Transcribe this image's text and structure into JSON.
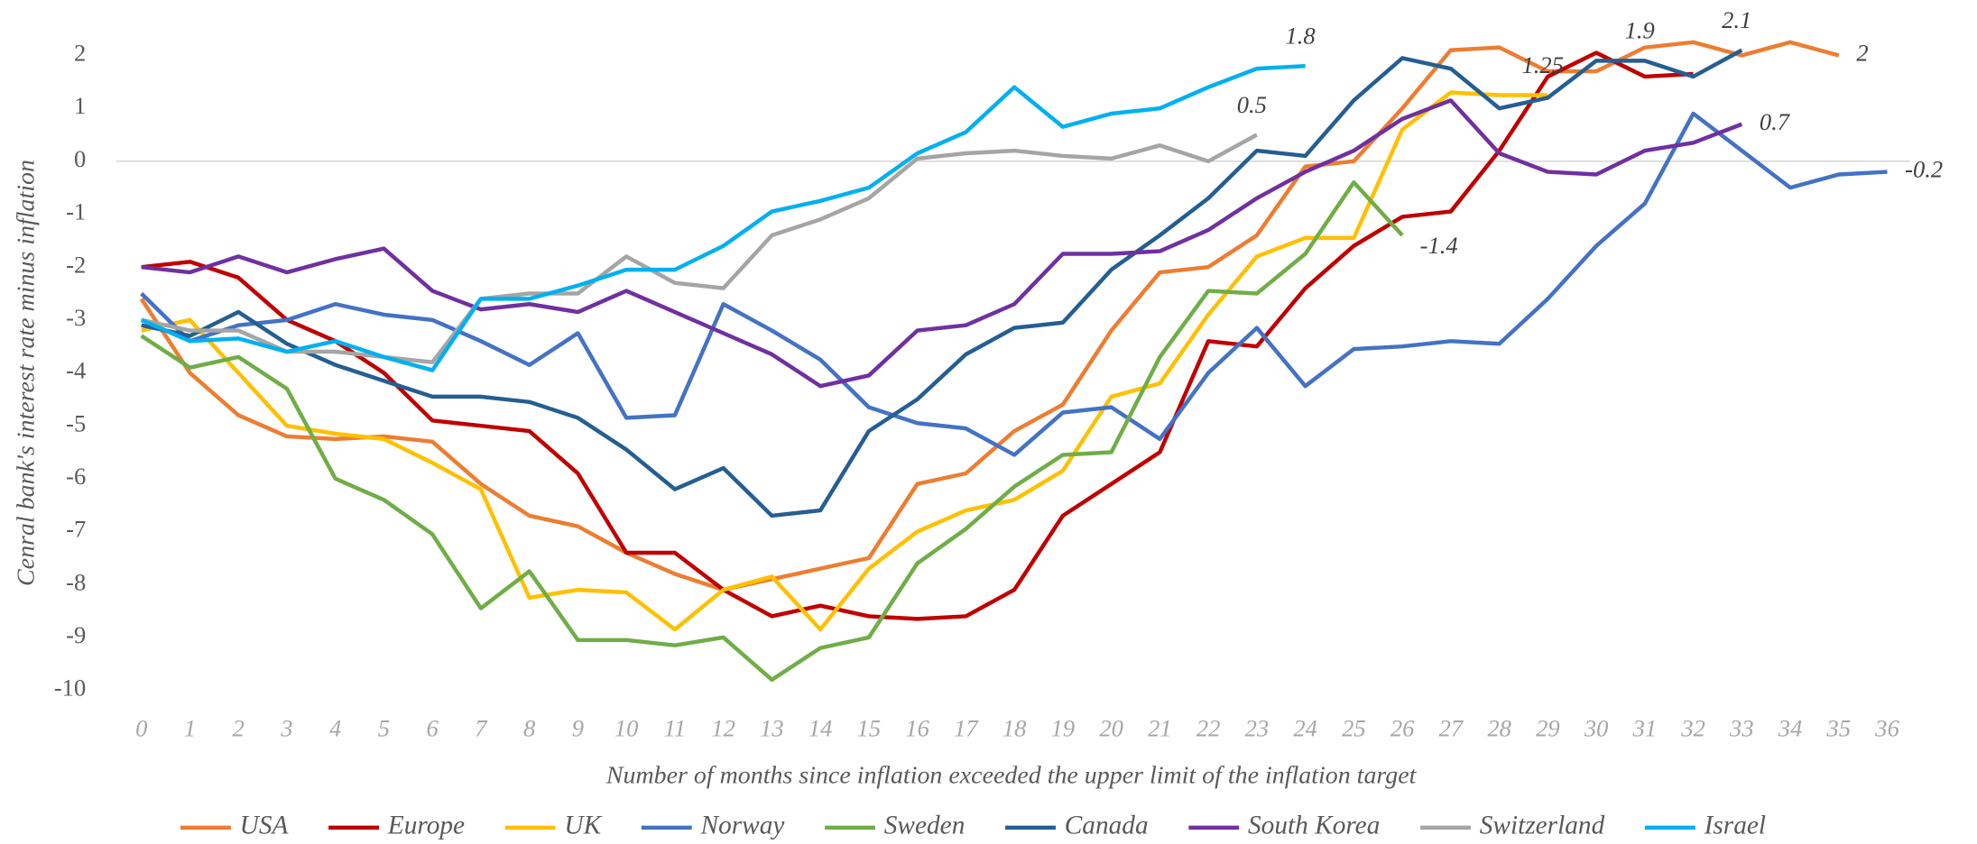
{
  "chart_data": {
    "type": "line",
    "y_label": "Cenral bank's interest rate minus inflation",
    "x_label": "Number of months since inflation exceeded the upper limit of the inflation target",
    "x": [
      0,
      1,
      2,
      3,
      4,
      5,
      6,
      7,
      8,
      9,
      10,
      11,
      12,
      13,
      14,
      15,
      16,
      17,
      18,
      19,
      20,
      21,
      22,
      23,
      24,
      25,
      26,
      27,
      28,
      29,
      30,
      31,
      32,
      33,
      34,
      35,
      36
    ],
    "xlim": [
      0,
      36
    ],
    "xticks": [
      0,
      1,
      2,
      3,
      4,
      5,
      6,
      7,
      8,
      9,
      10,
      11,
      12,
      13,
      14,
      15,
      16,
      17,
      18,
      19,
      20,
      21,
      22,
      23,
      24,
      25,
      26,
      27,
      28,
      29,
      30,
      31,
      32,
      33,
      34,
      35,
      36
    ],
    "ylim": [
      -10,
      2
    ],
    "yticks": [
      -10,
      -9,
      -8,
      -7,
      -6,
      -5,
      -4,
      -3,
      -2,
      -1,
      0,
      1,
      2
    ],
    "legend": "bottom",
    "series": [
      {
        "name": "USA",
        "color": "#ed7d31",
        "values": [
          -2.6,
          -4.0,
          -4.8,
          -5.2,
          -5.25,
          -5.2,
          -5.3,
          -6.1,
          -6.7,
          -6.9,
          -7.4,
          -7.8,
          -8.1,
          -7.9,
          -7.7,
          -7.5,
          -6.1,
          -5.9,
          -5.1,
          -4.6,
          -3.2,
          -2.1,
          -2.0,
          -1.4,
          -0.1,
          0.0,
          1.0,
          2.1,
          2.15,
          1.7,
          1.7,
          2.15,
          2.25,
          2.0,
          2.25,
          2,
          null
        ],
        "value_labels": [
          null,
          null,
          null,
          null,
          null,
          null,
          null,
          null,
          null,
          null,
          null,
          null,
          null,
          null,
          null,
          null,
          null,
          null,
          null,
          null,
          null,
          null,
          null,
          null,
          null,
          null,
          null,
          null,
          null,
          null,
          null,
          null,
          null,
          null,
          null,
          "2",
          null
        ]
      },
      {
        "name": "Europe",
        "color": "#c00000",
        "values": [
          -2.0,
          -1.9,
          -2.2,
          -3.0,
          -3.4,
          -4.0,
          -4.9,
          -5.0,
          -5.1,
          -5.9,
          -7.4,
          -7.4,
          -8.1,
          -8.6,
          -8.4,
          -8.6,
          -8.65,
          -8.6,
          -8.1,
          -6.7,
          -6.1,
          -5.5,
          -3.4,
          -3.5,
          -2.4,
          -1.6,
          -1.05,
          -0.95,
          0.2,
          1.6,
          2.05,
          1.6,
          1.65,
          null,
          null,
          null,
          null
        ]
      },
      {
        "name": "UK",
        "color": "#ffc000",
        "values": [
          -3.2,
          -3.0,
          -4.0,
          -5.0,
          -5.15,
          -5.25,
          -5.7,
          -6.2,
          -8.25,
          -8.1,
          -8.15,
          -8.85,
          -8.1,
          -7.85,
          -8.85,
          -7.7,
          -7.0,
          -6.6,
          -6.4,
          -5.85,
          -4.45,
          -4.2,
          -2.9,
          -1.8,
          -1.45,
          -1.45,
          0.6,
          1.3,
          1.25,
          1.25,
          null,
          null,
          null,
          null,
          null,
          null,
          null
        ],
        "value_labels": [
          null,
          null,
          null,
          null,
          null,
          null,
          null,
          null,
          null,
          null,
          null,
          null,
          null,
          null,
          null,
          null,
          null,
          null,
          null,
          null,
          null,
          null,
          null,
          null,
          null,
          null,
          null,
          null,
          null,
          "1.25",
          null,
          null,
          null,
          null,
          null,
          null,
          null
        ]
      },
      {
        "name": "Norway",
        "color": "#4472c4",
        "values": [
          -2.5,
          -3.4,
          -3.1,
          -3.0,
          -2.7,
          -2.9,
          -3.0,
          -3.4,
          -3.85,
          -3.25,
          -4.85,
          -4.8,
          -2.7,
          -3.2,
          -3.75,
          -4.65,
          -4.95,
          -5.05,
          -5.55,
          -4.75,
          -4.65,
          -5.25,
          -4.0,
          -3.15,
          -4.25,
          -3.55,
          -3.5,
          -3.4,
          -3.45,
          -2.6,
          -1.6,
          -0.8,
          0.9,
          0.2,
          -0.5,
          -0.25,
          -0.2
        ],
        "value_labels": [
          null,
          null,
          null,
          null,
          null,
          null,
          null,
          null,
          null,
          null,
          null,
          null,
          null,
          null,
          null,
          null,
          null,
          null,
          null,
          null,
          null,
          null,
          null,
          null,
          null,
          null,
          null,
          null,
          null,
          null,
          null,
          null,
          null,
          null,
          null,
          null,
          "-0.2"
        ]
      },
      {
        "name": "Sweden",
        "color": "#70ad47",
        "values": [
          -3.3,
          -3.9,
          -3.7,
          -4.3,
          -6.0,
          -6.4,
          -7.05,
          -8.45,
          -7.75,
          -9.05,
          -9.05,
          -9.15,
          -9.0,
          -9.8,
          -9.2,
          -9.0,
          -7.6,
          -6.95,
          -6.15,
          -5.55,
          -5.5,
          -3.7,
          -2.45,
          -2.5,
          -1.75,
          -0.4,
          -1.4,
          null,
          null,
          null,
          null,
          null,
          null,
          null,
          null,
          null,
          null
        ],
        "value_labels": [
          null,
          null,
          null,
          null,
          null,
          null,
          null,
          null,
          null,
          null,
          null,
          null,
          null,
          null,
          null,
          null,
          null,
          null,
          null,
          null,
          null,
          null,
          null,
          null,
          null,
          null,
          "-1.4",
          null,
          null,
          null,
          null,
          null,
          null,
          null,
          null,
          null,
          null
        ]
      },
      {
        "name": "Canada",
        "color": "#255e91",
        "values": [
          -3.1,
          -3.3,
          -2.85,
          -3.45,
          -3.85,
          -4.15,
          -4.45,
          -4.45,
          -4.55,
          -4.85,
          -5.45,
          -6.2,
          -5.8,
          -6.7,
          -6.6,
          -5.1,
          -4.5,
          -3.65,
          -3.15,
          -3.05,
          -2.05,
          -1.4,
          -0.7,
          0.2,
          0.1,
          1.15,
          1.95,
          1.75,
          1.0,
          1.2,
          1.9,
          1.9,
          1.6,
          2.1,
          null,
          null,
          null
        ],
        "value_labels": [
          null,
          null,
          null,
          null,
          null,
          null,
          null,
          null,
          null,
          null,
          null,
          null,
          null,
          null,
          null,
          null,
          null,
          null,
          null,
          null,
          null,
          null,
          null,
          null,
          null,
          null,
          null,
          null,
          null,
          null,
          null,
          "1.9",
          null,
          "2.1",
          null,
          null,
          null
        ]
      },
      {
        "name": "South Korea",
        "color": "#7030a0",
        "values": [
          -2.0,
          -2.1,
          -1.8,
          -2.1,
          -1.85,
          -1.65,
          -2.45,
          -2.8,
          -2.7,
          -2.85,
          -2.45,
          -2.85,
          -3.25,
          -3.65,
          -4.25,
          -4.05,
          -3.2,
          -3.1,
          -2.7,
          -1.75,
          -1.75,
          -1.7,
          -1.3,
          -0.7,
          -0.2,
          0.2,
          0.8,
          1.15,
          0.15,
          -0.2,
          -0.25,
          0.2,
          0.35,
          0.7,
          null,
          null,
          null
        ],
        "value_labels": [
          null,
          null,
          null,
          null,
          null,
          null,
          null,
          null,
          null,
          null,
          null,
          null,
          null,
          null,
          null,
          null,
          null,
          null,
          null,
          null,
          null,
          null,
          null,
          null,
          null,
          null,
          null,
          null,
          null,
          null,
          null,
          null,
          null,
          "0.7",
          null,
          null,
          null
        ]
      },
      {
        "name": "Switzerland",
        "color": "#a5a5a5",
        "values": [
          -3.0,
          -3.2,
          -3.2,
          -3.6,
          -3.6,
          -3.7,
          -3.8,
          -2.6,
          -2.5,
          -2.5,
          -1.8,
          -2.3,
          -2.4,
          -1.4,
          -1.1,
          -0.7,
          0.05,
          0.15,
          0.2,
          0.1,
          0.05,
          0.3,
          0.0,
          0.5,
          null,
          null,
          null,
          null,
          null,
          null,
          null,
          null,
          null,
          null,
          null,
          null,
          null
        ],
        "value_labels": [
          null,
          null,
          null,
          null,
          null,
          null,
          null,
          null,
          null,
          null,
          null,
          null,
          null,
          null,
          null,
          null,
          null,
          null,
          null,
          null,
          null,
          null,
          null,
          "0.5",
          null,
          null,
          null,
          null,
          null,
          null,
          null,
          null,
          null,
          null,
          null,
          null,
          null
        ]
      },
      {
        "name": "Israel",
        "color": "#00b0f0",
        "values": [
          -3.0,
          -3.4,
          -3.35,
          -3.6,
          -3.4,
          -3.7,
          -3.95,
          -2.6,
          -2.6,
          -2.35,
          -2.05,
          -2.05,
          -1.6,
          -0.95,
          -0.75,
          -0.5,
          0.15,
          0.55,
          1.4,
          0.65,
          0.9,
          1.0,
          1.4,
          1.75,
          1.8,
          null,
          null,
          null,
          null,
          null,
          null,
          null,
          null,
          null,
          null,
          null,
          null
        ],
        "value_labels": [
          null,
          null,
          null,
          null,
          null,
          null,
          null,
          null,
          null,
          null,
          null,
          null,
          null,
          null,
          null,
          null,
          null,
          null,
          null,
          null,
          null,
          null,
          null,
          null,
          "1.8",
          null,
          null,
          null,
          null,
          null,
          null,
          null,
          null,
          null,
          null,
          null,
          null
        ]
      }
    ]
  }
}
